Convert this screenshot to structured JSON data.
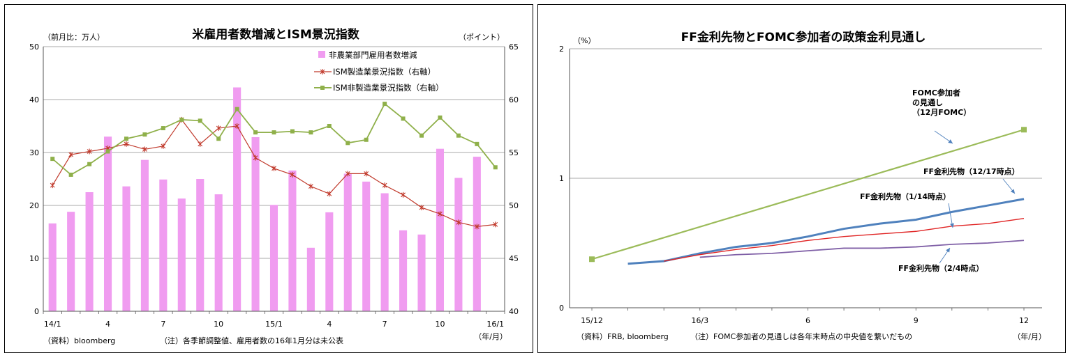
{
  "chart_data": [
    {
      "type": "bar",
      "title": "米雇用者数増減とISM景況指数",
      "y_left_unit": "（前月比：万人）",
      "y_right_unit": "（ポイント）",
      "x_unit": "（年/月）",
      "source": "（資料）bloomberg",
      "note": "（注）各季節調整値、雇用者数の16年1月分は未公表",
      "ylim_left": [
        0,
        50
      ],
      "yticks_left": [
        "0",
        "10",
        "20",
        "30",
        "40",
        "50"
      ],
      "ylim_right": [
        40,
        65
      ],
      "yticks_right": [
        "40",
        "45",
        "50",
        "55",
        "60",
        "65"
      ],
      "grid": true,
      "legend_position": "top-right",
      "x_tick_labels": [
        {
          "index": 0,
          "label": "14/1"
        },
        {
          "index": 3,
          "label": "4"
        },
        {
          "index": 6,
          "label": "7"
        },
        {
          "index": 9,
          "label": "10"
        },
        {
          "index": 12,
          "label": "15/1"
        },
        {
          "index": 15,
          "label": "4"
        },
        {
          "index": 18,
          "label": "7"
        },
        {
          "index": 21,
          "label": "10"
        },
        {
          "index": 24,
          "label": "16/1"
        }
      ],
      "series": [
        {
          "name": "非農業部門雇用者数増減",
          "type": "bar",
          "axis": "left",
          "color": "#f09cf0",
          "values": [
            16.6,
            18.8,
            22.5,
            33.0,
            23.6,
            28.6,
            24.9,
            21.3,
            25.0,
            22.1,
            42.3,
            32.9,
            20.1,
            26.6,
            12.0,
            18.7,
            26.0,
            24.5,
            22.3,
            15.3,
            14.5,
            30.7,
            25.2,
            29.2,
            null
          ]
        },
        {
          "name": "ISM製造業景況指数（右軸）",
          "type": "line",
          "axis": "right",
          "color": "#c0392b",
          "marker": "asterisk",
          "values": [
            51.9,
            54.8,
            55.1,
            55.4,
            55.8,
            55.3,
            55.6,
            58.1,
            55.8,
            57.3,
            57.5,
            54.5,
            53.5,
            52.9,
            51.8,
            51.1,
            53.0,
            53.0,
            51.9,
            51.0,
            49.8,
            49.2,
            48.4,
            48.0,
            48.2
          ]
        },
        {
          "name": "ISM非製造業景況指数（右軸）",
          "type": "line",
          "axis": "right",
          "color": "#8fb04a",
          "marker": "square",
          "values": [
            54.4,
            52.9,
            53.9,
            55.1,
            56.3,
            56.7,
            57.3,
            58.1,
            58.0,
            56.3,
            59.1,
            56.9,
            56.9,
            57.0,
            56.9,
            57.5,
            55.9,
            56.2,
            59.6,
            58.2,
            56.6,
            58.3,
            56.6,
            55.8,
            53.6
          ]
        }
      ]
    },
    {
      "type": "line",
      "title": "FF金利先物とFOMC参加者の政策金利見通し",
      "y_unit": "（%）",
      "x_unit": "（年/月）",
      "source": "（資料）FRB, bloomberg",
      "note": "（注）FOMC参加者の見通しは各年末時点の中央値を繋いだもの",
      "ylim": [
        0,
        2
      ],
      "yticks": [
        "0",
        "1",
        "2"
      ],
      "grid": true,
      "x_tick_labels": [
        {
          "month": 0,
          "label": "15/12"
        },
        {
          "month": 3,
          "label": "16/3"
        },
        {
          "month": 6,
          "label": "6"
        },
        {
          "month": 9,
          "label": "9"
        },
        {
          "month": 12,
          "label": "12"
        }
      ],
      "annotations": [
        {
          "series": 0,
          "lines": [
            "FOMC参加者",
            "の見通し",
            "（12月FOMC）"
          ]
        },
        {
          "series": 1,
          "lines": [
            "FF金利先物（12/17時点）"
          ]
        },
        {
          "series": 2,
          "lines": [
            "FF金利先物（1/14時点）"
          ]
        },
        {
          "series": 3,
          "lines": [
            "FF金利先物（2/4時点）"
          ]
        }
      ],
      "series": [
        {
          "name": "FOMC参加者の見通し（12月FOMC）",
          "color": "#9bbb59",
          "marker": "square",
          "points": [
            [
              0,
              0.375
            ],
            [
              12,
              1.375
            ]
          ]
        },
        {
          "name": "FF金利先物（12/17時点）",
          "color": "#4f81bd",
          "points": [
            [
              1,
              0.34
            ],
            [
              2,
              0.36
            ],
            [
              3,
              0.42
            ],
            [
              4,
              0.47
            ],
            [
              5,
              0.5
            ],
            [
              6,
              0.55
            ],
            [
              7,
              0.61
            ],
            [
              8,
              0.65
            ],
            [
              9,
              0.68
            ],
            [
              10,
              0.74
            ],
            [
              11,
              0.79
            ],
            [
              12,
              0.84
            ]
          ]
        },
        {
          "name": "FF金利先物（1/14時点）",
          "color": "#e02424",
          "points": [
            [
              2,
              0.36
            ],
            [
              3,
              0.41
            ],
            [
              4,
              0.45
            ],
            [
              5,
              0.48
            ],
            [
              6,
              0.52
            ],
            [
              7,
              0.55
            ],
            [
              8,
              0.57
            ],
            [
              9,
              0.59
            ],
            [
              10,
              0.63
            ],
            [
              11,
              0.65
            ],
            [
              12,
              0.69
            ]
          ]
        },
        {
          "name": "FF金利先物（2/4時点）",
          "color": "#7f5fa6",
          "points": [
            [
              3,
              0.39
            ],
            [
              4,
              0.41
            ],
            [
              5,
              0.42
            ],
            [
              6,
              0.44
            ],
            [
              7,
              0.46
            ],
            [
              8,
              0.46
            ],
            [
              9,
              0.47
            ],
            [
              10,
              0.49
            ],
            [
              11,
              0.5
            ],
            [
              12,
              0.52
            ]
          ]
        }
      ]
    }
  ]
}
